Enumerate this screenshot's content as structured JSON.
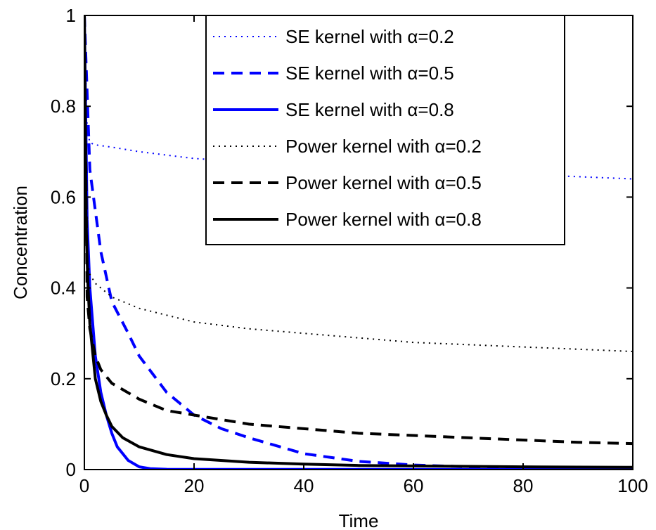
{
  "chart_data": {
    "type": "line",
    "title": "",
    "xlabel": "Time",
    "ylabel": "Concentration",
    "xlim": [
      0,
      100
    ],
    "ylim": [
      0,
      1
    ],
    "xticks": [
      0,
      20,
      40,
      60,
      80,
      100
    ],
    "xtick_labels": [
      "0",
      "20",
      "40",
      "60",
      "80",
      "100"
    ],
    "yticks": [
      0,
      0.2,
      0.4,
      0.6,
      0.8,
      1
    ],
    "ytick_labels": [
      "0",
      "0.2",
      "0.4",
      "0.6",
      "0.8",
      "1"
    ],
    "grid": false,
    "legend_position": "top-right",
    "series": [
      {
        "name": "SE kernel with α=0.2",
        "color": "#0000ff",
        "style": "dotted",
        "x": [
          0,
          0.5,
          1,
          2,
          5,
          10,
          20,
          40,
          60,
          80,
          100
        ],
        "y": [
          1,
          0.75,
          0.72,
          0.715,
          0.71,
          0.7,
          0.685,
          0.67,
          0.66,
          0.65,
          0.64
        ]
      },
      {
        "name": "SE kernel with α=0.5",
        "color": "#0000ff",
        "style": "dashed",
        "x": [
          0,
          1,
          2,
          3,
          5,
          8,
          10,
          15,
          20,
          25,
          30,
          40,
          50,
          60,
          70,
          80,
          90,
          100
        ],
        "y": [
          1,
          0.66,
          0.57,
          0.48,
          0.37,
          0.3,
          0.25,
          0.17,
          0.12,
          0.09,
          0.07,
          0.035,
          0.018,
          0.01,
          0.006,
          0.004,
          0.002,
          0.001
        ]
      },
      {
        "name": "SE kernel with α=0.8",
        "color": "#0000ff",
        "style": "solid",
        "x": [
          0,
          0.5,
          1,
          2,
          3,
          4,
          5,
          6,
          8,
          10,
          12,
          15,
          100
        ],
        "y": [
          1,
          0.55,
          0.4,
          0.25,
          0.17,
          0.12,
          0.08,
          0.05,
          0.02,
          0.006,
          0.002,
          0.0005,
          0
        ]
      },
      {
        "name": "Power kernel with α=0.2",
        "color": "#000000",
        "style": "dotted",
        "x": [
          0,
          0.5,
          1,
          2,
          5,
          10,
          20,
          30,
          40,
          50,
          60,
          70,
          80,
          90,
          100
        ],
        "y": [
          1,
          0.46,
          0.43,
          0.41,
          0.38,
          0.355,
          0.325,
          0.31,
          0.3,
          0.29,
          0.28,
          0.275,
          0.27,
          0.265,
          0.26
        ]
      },
      {
        "name": "Power kernel with α=0.5",
        "color": "#000000",
        "style": "dashed",
        "x": [
          0,
          0.5,
          1,
          2,
          3,
          5,
          10,
          15,
          20,
          30,
          40,
          50,
          60,
          70,
          80,
          90,
          100
        ],
        "y": [
          1,
          0.38,
          0.31,
          0.25,
          0.22,
          0.19,
          0.155,
          0.13,
          0.12,
          0.1,
          0.09,
          0.08,
          0.075,
          0.07,
          0.065,
          0.06,
          0.057
        ]
      },
      {
        "name": "Power kernel with α=0.8",
        "color": "#000000",
        "style": "solid",
        "x": [
          0,
          0.3,
          0.6,
          1,
          2,
          3,
          4,
          5,
          7,
          10,
          15,
          20,
          30,
          40,
          50,
          60,
          70,
          80,
          90,
          100
        ],
        "y": [
          1,
          0.55,
          0.42,
          0.32,
          0.2,
          0.15,
          0.12,
          0.095,
          0.07,
          0.05,
          0.033,
          0.024,
          0.016,
          0.012,
          0.009,
          0.008,
          0.007,
          0.006,
          0.0055,
          0.005
        ]
      }
    ]
  }
}
